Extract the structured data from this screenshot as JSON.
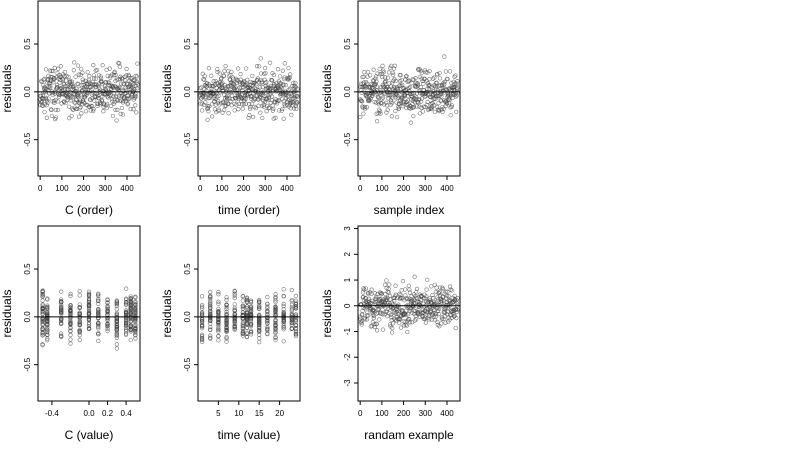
{
  "chart_data": [
    {
      "type": "scatter",
      "xlabel": "C (order)",
      "ylabel": "residuals",
      "xticks": [
        0,
        100,
        200,
        300,
        400
      ],
      "xtick_labels": [
        "0",
        "100",
        "200",
        "300",
        "400"
      ],
      "yticks": [
        -0.5,
        0.0,
        0.5
      ],
      "ytick_labels": [
        "-0.5",
        "0.0",
        "0.5"
      ],
      "xlim": [
        -10,
        460
      ],
      "ylim": [
        -0.88,
        0.95
      ],
      "hline": 0,
      "series": [
        {
          "x_kind": "order",
          "n": 450,
          "spread": 0.3,
          "seed": 11
        }
      ]
    },
    {
      "type": "scatter",
      "xlabel": "time (order)",
      "ylabel": "residuals",
      "xticks": [
        0,
        100,
        200,
        300,
        400
      ],
      "xtick_labels": [
        "0",
        "100",
        "200",
        "300",
        "400"
      ],
      "yticks": [
        -0.5,
        0.0,
        0.5
      ],
      "ytick_labels": [
        "-0.5",
        "0.0",
        "0.5"
      ],
      "xlim": [
        -10,
        460
      ],
      "ylim": [
        -0.88,
        0.95
      ],
      "hline": 0,
      "series": [
        {
          "x_kind": "order",
          "n": 450,
          "spread": 0.3,
          "seed": 23
        }
      ]
    },
    {
      "type": "scatter",
      "xlabel": "sample index",
      "ylabel": "residuals",
      "xticks": [
        0,
        100,
        200,
        300,
        400
      ],
      "xtick_labels": [
        "0",
        "100",
        "200",
        "300",
        "400"
      ],
      "yticks": [
        -0.5,
        0.0,
        0.5
      ],
      "ytick_labels": [
        "-0.5",
        "0.0",
        "0.5"
      ],
      "xlim": [
        -10,
        460
      ],
      "ylim": [
        -0.88,
        0.95
      ],
      "hline": 0,
      "series": [
        {
          "x_kind": "order",
          "n": 450,
          "spread": 0.3,
          "seed": 37
        }
      ]
    },
    {
      "type": "scatter",
      "xlabel": "C (value)",
      "ylabel": "residuals",
      "xticks": [
        -0.4,
        0.0,
        0.2,
        0.4
      ],
      "xtick_labels": [
        "-0.4",
        "0.0",
        "0.2",
        "0.4"
      ],
      "yticks": [
        -0.5,
        0.0,
        0.5
      ],
      "ytick_labels": [
        "-0.5",
        "0.0",
        "0.5"
      ],
      "xlim": [
        -0.55,
        0.55
      ],
      "ylim": [
        -0.88,
        0.95
      ],
      "hline": 0,
      "series": [
        {
          "x_kind": "levels",
          "levels": [
            -0.5,
            -0.45,
            -0.3,
            -0.2,
            -0.1,
            0.0,
            0.1,
            0.2,
            0.3,
            0.4,
            0.45,
            0.5
          ],
          "n": 450,
          "spread": 0.3,
          "seed": 41
        }
      ]
    },
    {
      "type": "scatter",
      "xlabel": "time (value)",
      "ylabel": "residuals",
      "xticks": [
        5,
        10,
        15,
        20
      ],
      "xtick_labels": [
        "5",
        "10",
        "15",
        "20"
      ],
      "yticks": [
        -0.5,
        0.0,
        0.5
      ],
      "ytick_labels": [
        "-0.5",
        "0.0",
        "0.5"
      ],
      "xlim": [
        0,
        25
      ],
      "ylim": [
        -0.88,
        0.95
      ],
      "hline": 0,
      "series": [
        {
          "x_kind": "levels",
          "levels": [
            1,
            3,
            5,
            7,
            9,
            11,
            12,
            13,
            15,
            17,
            19,
            21,
            23,
            24
          ],
          "n": 450,
          "spread": 0.3,
          "seed": 53
        }
      ]
    },
    {
      "type": "scatter",
      "xlabel": "randam example",
      "ylabel": "residuals",
      "xticks": [
        0,
        100,
        200,
        300,
        400
      ],
      "xtick_labels": [
        "0",
        "100",
        "200",
        "300",
        "400"
      ],
      "yticks": [
        -3,
        -2,
        -1,
        0,
        1,
        2,
        3
      ],
      "ytick_labels": [
        "-3",
        "-2",
        "-1",
        "0",
        "1",
        "2",
        "3"
      ],
      "xlim": [
        -10,
        460
      ],
      "ylim": [
        -3.7,
        3.1
      ],
      "hline": 0,
      "series": [
        {
          "x_kind": "order",
          "n": 450,
          "spread": 1.0,
          "seed": 67
        }
      ]
    }
  ]
}
